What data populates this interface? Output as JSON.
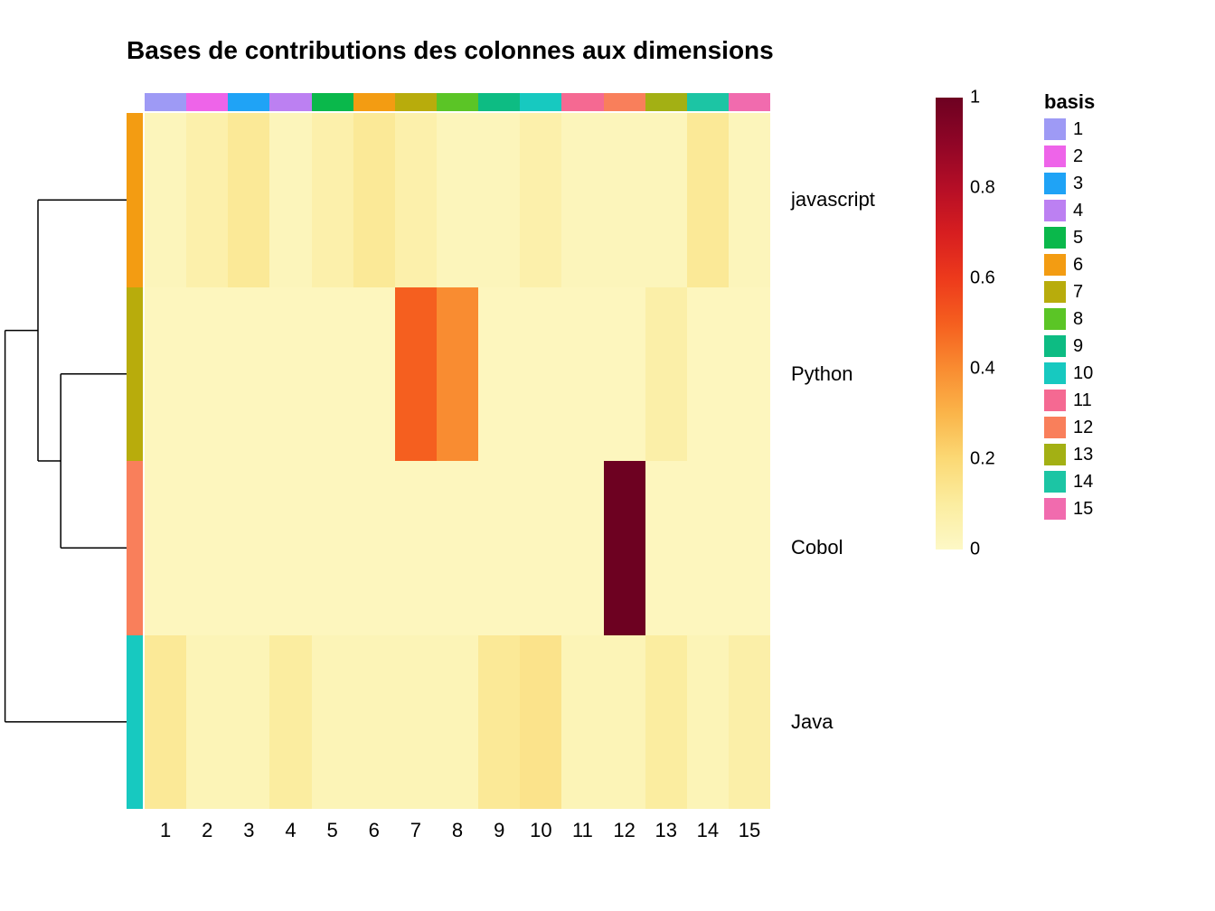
{
  "chart": {
    "type": "heatmap",
    "title": "Bases de contributions des colonnes aux dimensions",
    "title_fontsize": 28,
    "title_fontweight": "bold",
    "background_color": "#ffffff",
    "row_labels": [
      "javascript",
      "Python",
      "Cobol",
      "Java"
    ],
    "col_labels": [
      "1",
      "2",
      "3",
      "4",
      "5",
      "6",
      "7",
      "8",
      "9",
      "10",
      "11",
      "12",
      "13",
      "14",
      "15"
    ],
    "row_label_fontsize": 22,
    "col_label_fontsize": 22,
    "matrix": [
      [
        0.03,
        0.07,
        0.12,
        0.03,
        0.07,
        0.12,
        0.07,
        0.03,
        0.03,
        0.07,
        0.03,
        0.03,
        0.03,
        0.12,
        0.03
      ],
      [
        0.02,
        0.02,
        0.02,
        0.02,
        0.02,
        0.02,
        0.5,
        0.4,
        0.02,
        0.02,
        0.02,
        0.02,
        0.08,
        0.02,
        0.02
      ],
      [
        0.02,
        0.02,
        0.02,
        0.02,
        0.02,
        0.02,
        0.02,
        0.02,
        0.02,
        0.02,
        0.02,
        1.0,
        0.02,
        0.02,
        0.02
      ],
      [
        0.12,
        0.04,
        0.04,
        0.1,
        0.04,
        0.04,
        0.04,
        0.04,
        0.12,
        0.15,
        0.04,
        0.04,
        0.1,
        0.04,
        0.08
      ]
    ],
    "colormap": {
      "stops": [
        {
          "v": 0.0,
          "color": "#fdf8c6"
        },
        {
          "v": 0.1,
          "color": "#fbeda0"
        },
        {
          "v": 0.2,
          "color": "#fbd975"
        },
        {
          "v": 0.3,
          "color": "#fab54a"
        },
        {
          "v": 0.4,
          "color": "#f98c31"
        },
        {
          "v": 0.5,
          "color": "#f55f1f"
        },
        {
          "v": 0.6,
          "color": "#ed3a1c"
        },
        {
          "v": 0.7,
          "color": "#d71e20"
        },
        {
          "v": 0.8,
          "color": "#b50e26"
        },
        {
          "v": 0.9,
          "color": "#8f0526"
        },
        {
          "v": 1.0,
          "color": "#6d0121"
        }
      ],
      "ticks": [
        0,
        0.2,
        0.4,
        0.6,
        0.8,
        1
      ]
    },
    "row_annotation_colors": [
      "#F39C12",
      "#B8AC0C",
      "#F97F5B",
      "#17C9C0"
    ],
    "col_annotation_colors": [
      "#9E9AF5",
      "#EE64E9",
      "#1FA3F6",
      "#BC80F2",
      "#0AB84B",
      "#F39C12",
      "#B8AC0C",
      "#5BC526",
      "#0DBC83",
      "#17C9C0",
      "#F56992",
      "#F97F5B",
      "#A3B014",
      "#1CC5A4",
      "#F16BAE"
    ],
    "dendrogram": {
      "row_count": 4,
      "merges": [
        {
          "left_rows": [
            1
          ],
          "right_rows": [
            2
          ],
          "height": 0.52
        },
        {
          "left_rows": [
            0
          ],
          "right_rows": [
            1,
            2
          ],
          "height": 0.7
        },
        {
          "left_rows": [
            0,
            1,
            2
          ],
          "right_rows": [
            3
          ],
          "height": 0.96
        }
      ]
    },
    "legend": {
      "title": "basis",
      "title_fontsize": 22,
      "item_fontsize": 20,
      "items": [
        {
          "label": "1",
          "color": "#9E9AF5"
        },
        {
          "label": "2",
          "color": "#EE64E9"
        },
        {
          "label": "3",
          "color": "#1FA3F6"
        },
        {
          "label": "4",
          "color": "#BC80F2"
        },
        {
          "label": "5",
          "color": "#0AB84B"
        },
        {
          "label": "6",
          "color": "#F39C12"
        },
        {
          "label": "7",
          "color": "#B8AC0C"
        },
        {
          "label": "8",
          "color": "#5BC526"
        },
        {
          "label": "9",
          "color": "#0DBC83"
        },
        {
          "label": "10",
          "color": "#17C9C0"
        },
        {
          "label": "11",
          "color": "#F56992"
        },
        {
          "label": "12",
          "color": "#F97F5B"
        },
        {
          "label": "13",
          "color": "#A3B014"
        },
        {
          "label": "14",
          "color": "#1CC5A4"
        },
        {
          "label": "15",
          "color": "#F16BAE"
        }
      ]
    }
  }
}
